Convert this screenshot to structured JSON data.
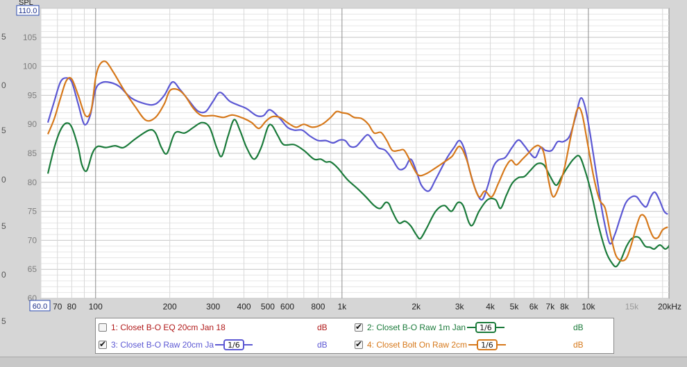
{
  "colors": {
    "green": "#1a7a3a",
    "blue": "#5b57d3",
    "orange": "#d6781a",
    "red": "#b01818",
    "axis_box": "#2a4ab0"
  },
  "chart_data": {
    "type": "line",
    "ylabel": "SPL",
    "xlabel": "",
    "y_scale": "linear",
    "x_scale": "log",
    "ylim": [
      60,
      110
    ],
    "xlim": [
      60,
      20000
    ],
    "ylim_top_label": "110.0",
    "xlim_left_label": "60.0",
    "grid": true,
    "y_ticks": [
      "105",
      "100",
      "95",
      "90",
      "85",
      "80",
      "75",
      "70",
      "65",
      "60"
    ],
    "x_ticks": [
      {
        "v": 70,
        "t": "70"
      },
      {
        "v": 80,
        "t": "80"
      },
      {
        "v": 100,
        "t": "100"
      },
      {
        "v": 200,
        "t": "200"
      },
      {
        "v": 300,
        "t": "300"
      },
      {
        "v": 400,
        "t": "400"
      },
      {
        "v": 500,
        "t": "500"
      },
      {
        "v": 600,
        "t": "600"
      },
      {
        "v": 800,
        "t": "800"
      },
      {
        "v": 1000,
        "t": "1k"
      },
      {
        "v": 2000,
        "t": "2k"
      },
      {
        "v": 3000,
        "t": "3k"
      },
      {
        "v": 4000,
        "t": "4k"
      },
      {
        "v": 5000,
        "t": "5k"
      },
      {
        "v": 6000,
        "t": "6k"
      },
      {
        "v": 7000,
        "t": "7k"
      },
      {
        "v": 8000,
        "t": "8k"
      },
      {
        "v": 10000,
        "t": "10k"
      },
      {
        "v": 15000,
        "t": "15k"
      },
      {
        "v": 20000,
        "t": "20kHz"
      }
    ],
    "series": [
      {
        "name": "2: Closet B-O Raw 1m Jan",
        "color": "#1a7a3a",
        "points": [
          [
            64,
            81.5
          ],
          [
            68,
            86
          ],
          [
            72,
            89
          ],
          [
            76,
            90.2
          ],
          [
            80,
            89.5
          ],
          [
            85,
            86
          ],
          [
            88,
            83
          ],
          [
            92,
            82
          ],
          [
            97,
            85
          ],
          [
            102,
            86.2
          ],
          [
            110,
            86
          ],
          [
            120,
            86.3
          ],
          [
            130,
            86
          ],
          [
            145,
            87.5
          ],
          [
            165,
            89
          ],
          [
            175,
            88.5
          ],
          [
            185,
            86
          ],
          [
            195,
            85
          ],
          [
            210,
            88.5
          ],
          [
            230,
            88.5
          ],
          [
            250,
            89.5
          ],
          [
            270,
            90.3
          ],
          [
            290,
            89.5
          ],
          [
            310,
            86
          ],
          [
            325,
            84.5
          ],
          [
            345,
            88
          ],
          [
            365,
            90.8
          ],
          [
            385,
            89
          ],
          [
            410,
            86
          ],
          [
            440,
            84
          ],
          [
            470,
            86
          ],
          [
            500,
            89.5
          ],
          [
            520,
            89.8
          ],
          [
            550,
            88
          ],
          [
            580,
            86.5
          ],
          [
            640,
            86.5
          ],
          [
            700,
            85.5
          ],
          [
            770,
            84
          ],
          [
            820,
            84
          ],
          [
            860,
            83.5
          ],
          [
            900,
            83.5
          ],
          [
            960,
            82.5
          ],
          [
            1050,
            80.5
          ],
          [
            1150,
            79
          ],
          [
            1250,
            77.5
          ],
          [
            1350,
            76
          ],
          [
            1430,
            75.5
          ],
          [
            1500,
            76.5
          ],
          [
            1550,
            76.3
          ],
          [
            1600,
            75
          ],
          [
            1700,
            73
          ],
          [
            1800,
            73.3
          ],
          [
            1900,
            72.5
          ],
          [
            2000,
            71
          ],
          [
            2080,
            70.3
          ],
          [
            2200,
            72
          ],
          [
            2400,
            75
          ],
          [
            2600,
            76
          ],
          [
            2780,
            75
          ],
          [
            2950,
            76.5
          ],
          [
            3100,
            76
          ],
          [
            3280,
            73
          ],
          [
            3400,
            72.7
          ],
          [
            3600,
            75
          ],
          [
            3900,
            77
          ],
          [
            4200,
            77
          ],
          [
            4400,
            75.5
          ],
          [
            4650,
            77.8
          ],
          [
            4900,
            79.8
          ],
          [
            5200,
            80.8
          ],
          [
            5500,
            81
          ],
          [
            5800,
            82
          ],
          [
            6200,
            83.2
          ],
          [
            6600,
            83
          ],
          [
            7000,
            81
          ],
          [
            7400,
            79.5
          ],
          [
            7800,
            81
          ],
          [
            8200,
            82.5
          ],
          [
            8700,
            84
          ],
          [
            9200,
            84.5
          ],
          [
            9700,
            82
          ],
          [
            10300,
            78
          ],
          [
            11000,
            72.5
          ],
          [
            11800,
            68
          ],
          [
            12500,
            66
          ],
          [
            13000,
            65.5
          ],
          [
            13600,
            66.8
          ],
          [
            14300,
            69
          ],
          [
            15000,
            70.3
          ],
          [
            16000,
            70.5
          ],
          [
            17000,
            69
          ],
          [
            17800,
            68.8
          ],
          [
            18500,
            68.5
          ],
          [
            19500,
            69.2
          ],
          [
            20500,
            68.5
          ],
          [
            21500,
            69
          ],
          [
            22500,
            69.2
          ]
        ]
      },
      {
        "name": "3: Closet B-O Raw 20cm Ja",
        "color": "#5b57d3",
        "points": [
          [
            64,
            90.3
          ],
          [
            68,
            94
          ],
          [
            72,
            97.3
          ],
          [
            76,
            98
          ],
          [
            80,
            97.3
          ],
          [
            85,
            93.5
          ],
          [
            90,
            90
          ],
          [
            95,
            91.5
          ],
          [
            100,
            96
          ],
          [
            106,
            97.2
          ],
          [
            115,
            97.2
          ],
          [
            125,
            96.5
          ],
          [
            140,
            94.5
          ],
          [
            160,
            93.5
          ],
          [
            175,
            93.5
          ],
          [
            190,
            95
          ],
          [
            205,
            97.3
          ],
          [
            220,
            96
          ],
          [
            240,
            94
          ],
          [
            260,
            92.3
          ],
          [
            280,
            92.2
          ],
          [
            300,
            94
          ],
          [
            320,
            95.5
          ],
          [
            350,
            94
          ],
          [
            380,
            93.3
          ],
          [
            410,
            92.7
          ],
          [
            450,
            91.5
          ],
          [
            480,
            91.5
          ],
          [
            510,
            92.5
          ],
          [
            560,
            91
          ],
          [
            600,
            89.5
          ],
          [
            640,
            89
          ],
          [
            690,
            89
          ],
          [
            740,
            88
          ],
          [
            800,
            87.2
          ],
          [
            860,
            87.2
          ],
          [
            920,
            86.8
          ],
          [
            980,
            87.3
          ],
          [
            1030,
            87.2
          ],
          [
            1080,
            86.2
          ],
          [
            1140,
            86.2
          ],
          [
            1200,
            87.2
          ],
          [
            1270,
            88.2
          ],
          [
            1330,
            87.3
          ],
          [
            1400,
            86
          ],
          [
            1500,
            85.5
          ],
          [
            1600,
            84
          ],
          [
            1700,
            82.3
          ],
          [
            1800,
            82.5
          ],
          [
            1900,
            84
          ],
          [
            2000,
            82
          ],
          [
            2100,
            79.5
          ],
          [
            2250,
            78.5
          ],
          [
            2400,
            80.5
          ],
          [
            2650,
            84
          ],
          [
            2850,
            86
          ],
          [
            3000,
            87.2
          ],
          [
            3150,
            85.5
          ],
          [
            3300,
            82
          ],
          [
            3500,
            78.5
          ],
          [
            3700,
            77
          ],
          [
            3900,
            79.3
          ],
          [
            4100,
            82.5
          ],
          [
            4300,
            83.8
          ],
          [
            4600,
            84.3
          ],
          [
            4900,
            86
          ],
          [
            5200,
            87.3
          ],
          [
            5500,
            86.3
          ],
          [
            5800,
            85
          ],
          [
            6100,
            84.3
          ],
          [
            6400,
            86
          ],
          [
            6700,
            85.5
          ],
          [
            7100,
            85.5
          ],
          [
            7500,
            87
          ],
          [
            7900,
            87
          ],
          [
            8400,
            88
          ],
          [
            8900,
            91.5
          ],
          [
            9300,
            94.5
          ],
          [
            9700,
            93
          ],
          [
            10200,
            88
          ],
          [
            10900,
            80
          ],
          [
            11500,
            74
          ],
          [
            12200,
            69.5
          ],
          [
            12800,
            71
          ],
          [
            13500,
            74
          ],
          [
            14200,
            76.5
          ],
          [
            15000,
            77.5
          ],
          [
            15700,
            77.5
          ],
          [
            16500,
            76.3
          ],
          [
            17200,
            75.8
          ],
          [
            17900,
            77.5
          ],
          [
            18600,
            78.3
          ],
          [
            19400,
            77
          ],
          [
            20300,
            75
          ],
          [
            21000,
            74.5
          ]
        ]
      },
      {
        "name": "4: Closet Bolt On Raw 2cm",
        "color": "#d6781a",
        "points": [
          [
            64,
            88.3
          ],
          [
            68,
            91
          ],
          [
            72,
            94.5
          ],
          [
            76,
            97.5
          ],
          [
            80,
            97.8
          ],
          [
            85,
            95
          ],
          [
            91,
            91.5
          ],
          [
            96,
            92.5
          ],
          [
            100,
            98
          ],
          [
            104,
            100.3
          ],
          [
            110,
            100.8
          ],
          [
            118,
            99
          ],
          [
            130,
            96
          ],
          [
            145,
            93
          ],
          [
            160,
            90.7
          ],
          [
            175,
            91.2
          ],
          [
            190,
            93.5
          ],
          [
            200,
            95.8
          ],
          [
            215,
            96
          ],
          [
            230,
            95
          ],
          [
            250,
            92.7
          ],
          [
            270,
            91.5
          ],
          [
            300,
            91.5
          ],
          [
            330,
            91.2
          ],
          [
            360,
            91.6
          ],
          [
            400,
            91
          ],
          [
            430,
            90.3
          ],
          [
            460,
            89.3
          ],
          [
            490,
            90.5
          ],
          [
            520,
            91.3
          ],
          [
            560,
            91.2
          ],
          [
            600,
            90.3
          ],
          [
            650,
            89.5
          ],
          [
            700,
            90
          ],
          [
            760,
            89.5
          ],
          [
            830,
            90
          ],
          [
            900,
            91.2
          ],
          [
            950,
            92.2
          ],
          [
            1000,
            92
          ],
          [
            1060,
            91.8
          ],
          [
            1120,
            91.2
          ],
          [
            1200,
            91
          ],
          [
            1280,
            90
          ],
          [
            1350,
            88.5
          ],
          [
            1440,
            88.6
          ],
          [
            1520,
            87.2
          ],
          [
            1600,
            85.5
          ],
          [
            1700,
            85.5
          ],
          [
            1780,
            85.6
          ],
          [
            1850,
            84.5
          ],
          [
            1950,
            82.5
          ],
          [
            2050,
            81.2
          ],
          [
            2200,
            81.5
          ],
          [
            2400,
            82.5
          ],
          [
            2600,
            83.5
          ],
          [
            2800,
            84.5
          ],
          [
            3000,
            86.2
          ],
          [
            3200,
            84
          ],
          [
            3400,
            80
          ],
          [
            3600,
            77.5
          ],
          [
            3800,
            78.5
          ],
          [
            4050,
            77.5
          ],
          [
            4300,
            79.7
          ],
          [
            4600,
            82.5
          ],
          [
            4850,
            83.8
          ],
          [
            5100,
            83
          ],
          [
            5400,
            84
          ],
          [
            5700,
            85
          ],
          [
            6000,
            86
          ],
          [
            6300,
            86.3
          ],
          [
            6600,
            85
          ],
          [
            6900,
            80.2
          ],
          [
            7200,
            77.5
          ],
          [
            7600,
            79.3
          ],
          [
            8000,
            82.5
          ],
          [
            8500,
            88
          ],
          [
            9000,
            92.5
          ],
          [
            9400,
            92
          ],
          [
            9900,
            87
          ],
          [
            10500,
            81
          ],
          [
            11100,
            77
          ],
          [
            11700,
            75.5
          ],
          [
            12300,
            71
          ],
          [
            12900,
            67.5
          ],
          [
            13600,
            66.5
          ],
          [
            14300,
            67
          ],
          [
            15000,
            69.5
          ],
          [
            15700,
            72.5
          ],
          [
            16300,
            74.3
          ],
          [
            17000,
            74
          ],
          [
            17700,
            72
          ],
          [
            18400,
            70.5
          ],
          [
            19200,
            70.5
          ],
          [
            20000,
            71.8
          ],
          [
            21000,
            72.3
          ]
        ]
      }
    ]
  },
  "legend": {
    "items": [
      {
        "label": "1: Closet B-O EQ 20cm Jan 18",
        "unit": "dB",
        "checked": false,
        "smoothing": ""
      },
      {
        "label": "2: Closet B-O Raw 1m Jan",
        "unit": "dB",
        "checked": true,
        "smoothing": "1/6"
      },
      {
        "label": "3: Closet B-O Raw 20cm Ja",
        "unit": "dB",
        "checked": true,
        "smoothing": "1/6"
      },
      {
        "label": "4: Closet Bolt On Raw 2cm",
        "unit": "dB",
        "checked": true,
        "smoothing": "1/6"
      }
    ]
  },
  "left_ghost_labels": [
    "5",
    "0",
    "5",
    "0",
    "5",
    "0",
    "5"
  ]
}
